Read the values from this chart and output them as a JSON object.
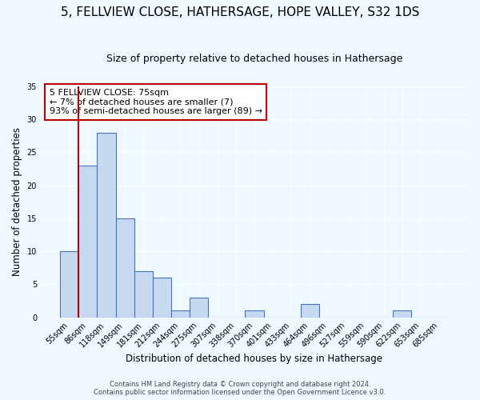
{
  "title": "5, FELLVIEW CLOSE, HATHERSAGE, HOPE VALLEY, S32 1DS",
  "subtitle": "Size of property relative to detached houses in Hathersage",
  "xlabel": "Distribution of detached houses by size in Hathersage",
  "ylabel": "Number of detached properties",
  "bar_labels": [
    "55sqm",
    "86sqm",
    "118sqm",
    "149sqm",
    "181sqm",
    "212sqm",
    "244sqm",
    "275sqm",
    "307sqm",
    "338sqm",
    "370sqm",
    "401sqm",
    "433sqm",
    "464sqm",
    "496sqm",
    "527sqm",
    "559sqm",
    "590sqm",
    "622sqm",
    "653sqm",
    "685sqm"
  ],
  "bar_values": [
    10,
    23,
    28,
    15,
    7,
    6,
    1,
    3,
    0,
    0,
    1,
    0,
    0,
    2,
    0,
    0,
    0,
    0,
    1,
    0,
    0
  ],
  "bar_face_color": "#c6d9f1",
  "bar_edge_color": "#4472c4",
  "red_line_color": "#c00000",
  "annotation_title": "5 FELLVIEW CLOSE: 75sqm",
  "annotation_line1": "← 7% of detached houses are smaller (7)",
  "annotation_line2": "93% of semi-detached houses are larger (89) →",
  "annotation_box_color": "#ffffff",
  "annotation_border_color": "#c00000",
  "ylim": [
    0,
    35
  ],
  "yticks": [
    0,
    5,
    10,
    15,
    20,
    25,
    30,
    35
  ],
  "footer1": "Contains HM Land Registry data © Crown copyright and database right 2024.",
  "footer2": "Contains public sector information licensed under the Open Government Licence v3.0.",
  "background_color": "#f0f8ff",
  "title_fontsize": 11,
  "subtitle_fontsize": 9,
  "tick_fontsize": 7,
  "label_fontsize": 8.5,
  "annotation_fontsize": 8,
  "footer_fontsize": 6
}
